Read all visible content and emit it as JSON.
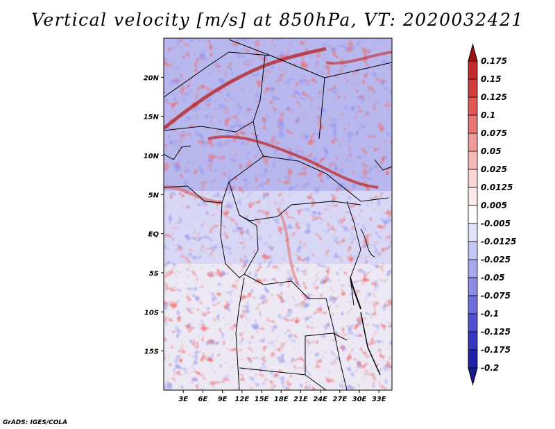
{
  "title": "Vertical velocity [m/s] at 850hPa, VT: 2020032421",
  "credit": "GrADS: IGES/COLA",
  "map": {
    "projection": "latlon",
    "lon_range": [
      0,
      35
    ],
    "lat_range": [
      -20,
      25
    ],
    "lat_ticks": [
      {
        "value": 20,
        "label": "20N"
      },
      {
        "value": 15,
        "label": "15N"
      },
      {
        "value": 10,
        "label": "10N"
      },
      {
        "value": 5,
        "label": "5N"
      },
      {
        "value": 0,
        "label": "EQ"
      },
      {
        "value": -5,
        "label": "5S"
      },
      {
        "value": -10,
        "label": "10S"
      },
      {
        "value": -15,
        "label": "15S"
      }
    ],
    "lon_ticks": [
      {
        "value": 3,
        "label": "3E"
      },
      {
        "value": 6,
        "label": "6E"
      },
      {
        "value": 9,
        "label": "9E"
      },
      {
        "value": 12,
        "label": "12E"
      },
      {
        "value": 15,
        "label": "15E"
      },
      {
        "value": 18,
        "label": "18E"
      },
      {
        "value": 21,
        "label": "21E"
      },
      {
        "value": 24,
        "label": "24E"
      },
      {
        "value": 27,
        "label": "27E"
      },
      {
        "value": 30,
        "label": "30E"
      },
      {
        "value": 33,
        "label": "33E"
      }
    ]
  },
  "colorbar": {
    "levels": [
      {
        "label": "0.175",
        "color": "#b01818"
      },
      {
        "label": "0.15",
        "color": "#c42828"
      },
      {
        "label": "0.125",
        "color": "#d43c3c"
      },
      {
        "label": "0.1",
        "color": "#e05858"
      },
      {
        "label": "0.075",
        "color": "#e87878"
      },
      {
        "label": "0.05",
        "color": "#f09a9a"
      },
      {
        "label": "0.025",
        "color": "#f6baba"
      },
      {
        "label": "0.0125",
        "color": "#fad6d6"
      },
      {
        "label": "0.005",
        "color": "#fdebeb"
      },
      {
        "label": "-0.005",
        "color": "#ffffff"
      },
      {
        "label": "-0.0125",
        "color": "#e2e2fa"
      },
      {
        "label": "-0.025",
        "color": "#c6c6f4"
      },
      {
        "label": "-0.05",
        "color": "#a8a8ec"
      },
      {
        "label": "-0.075",
        "color": "#8c8ce4"
      },
      {
        "label": "-0.1",
        "color": "#6e6edc"
      },
      {
        "label": "-0.125",
        "color": "#5050d0"
      },
      {
        "label": "-0.175",
        "color": "#3636c0"
      },
      {
        "label": "-0.2",
        "color": "#2020a8"
      }
    ],
    "top_cap_color": "#a01010",
    "bottom_cap_color": "#1a1a90"
  }
}
